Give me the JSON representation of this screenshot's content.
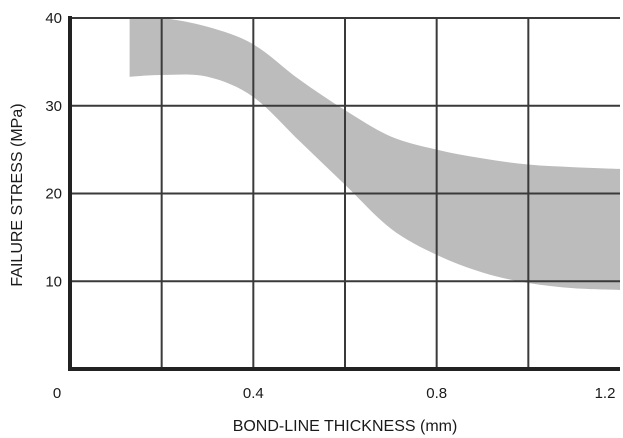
{
  "chart_data": {
    "type": "area",
    "title": "",
    "xlabel": "BOND-LINE THICKNESS (mm)",
    "ylabel": "FAILURE STRESS (MPa)",
    "xlim": [
      0,
      1.2
    ],
    "ylim": [
      0,
      40
    ],
    "grid": true,
    "x_ticks": [
      {
        "value": 0,
        "label": "0"
      },
      {
        "value": 0.4,
        "label": "0.4"
      },
      {
        "value": 0.8,
        "label": "0.8"
      },
      {
        "value": 1.2,
        "label": "1.2"
      }
    ],
    "y_ticks": [
      {
        "value": 10,
        "label": "10"
      },
      {
        "value": 20,
        "label": "20"
      },
      {
        "value": 30,
        "label": "30"
      },
      {
        "value": 40,
        "label": "40"
      }
    ],
    "x_gridlines": [
      0.2,
      0.4,
      0.6,
      0.8,
      1.0
    ],
    "y_gridlines": [
      10,
      20,
      30
    ],
    "band": {
      "x": [
        0.13,
        0.2,
        0.3,
        0.4,
        0.5,
        0.6,
        0.7,
        0.8,
        0.9,
        1.0,
        1.1,
        1.2
      ],
      "upper": [
        40.0,
        40.0,
        39.0,
        37.0,
        33.0,
        29.5,
        26.5,
        25.0,
        24.0,
        23.3,
        23.0,
        22.8
      ],
      "lower": [
        33.3,
        33.5,
        33.3,
        31.0,
        26.0,
        21.0,
        16.0,
        13.0,
        11.0,
        9.8,
        9.2,
        9.0
      ]
    },
    "colors": {
      "band": "#bcbcbc",
      "grid": "#3a3a3a",
      "axis": "#222222"
    }
  }
}
